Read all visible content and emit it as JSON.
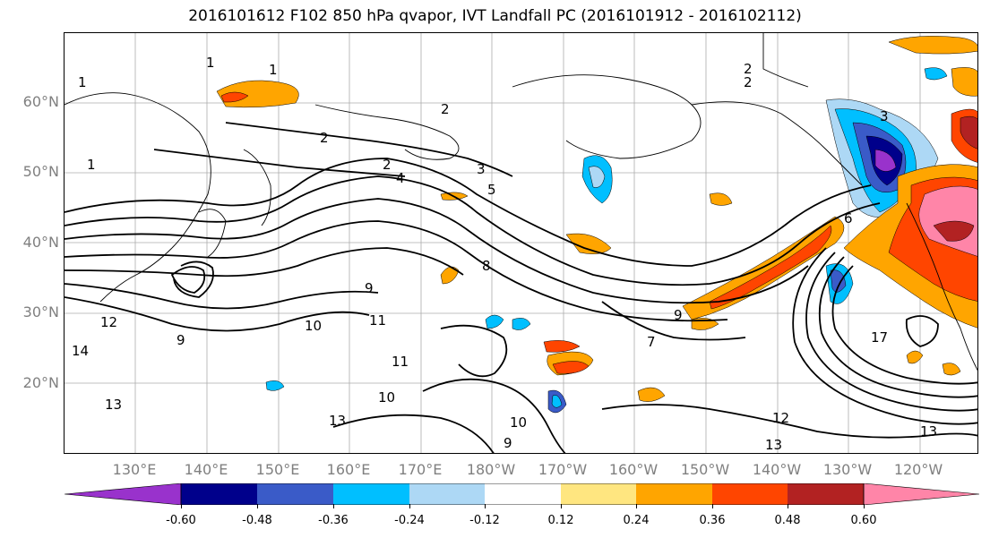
{
  "title": "2016101612 F102 850 hPa qvapor, IVT Landfall PC (2016101912 - 2016102112)",
  "lat_labels": [
    "60°N",
    "50°N",
    "40°N",
    "30°N",
    "20°N"
  ],
  "lon_labels": [
    "130°E",
    "140°E",
    "150°E",
    "160°E",
    "170°E",
    "180°W",
    "170°W",
    "160°W",
    "150°W",
    "140°W",
    "130°W",
    "120°W"
  ],
  "colorbar": {
    "colors": [
      "#9932CC",
      "#00008B",
      "#3A5BC8",
      "#00BFFF",
      "#ADD8F5",
      "#FFFFFF",
      "#FFE680",
      "#FFA500",
      "#FF4500",
      "#B22222",
      "#FF85A8"
    ],
    "ticks": [
      "-0.60",
      "-0.48",
      "-0.36",
      "-0.24",
      "-0.12",
      "0.12",
      "0.24",
      "0.36",
      "0.48",
      "0.60"
    ]
  },
  "contour_labels": [
    "1",
    "1",
    "1",
    "1",
    "2",
    "2",
    "2",
    "2",
    "2",
    "3",
    "3",
    "4",
    "5",
    "6",
    "7",
    "8",
    "9",
    "9",
    "9",
    "10",
    "10",
    "11",
    "11",
    "12",
    "12",
    "13",
    "13",
    "13",
    "13",
    "14",
    "17",
    "9",
    "10"
  ]
}
